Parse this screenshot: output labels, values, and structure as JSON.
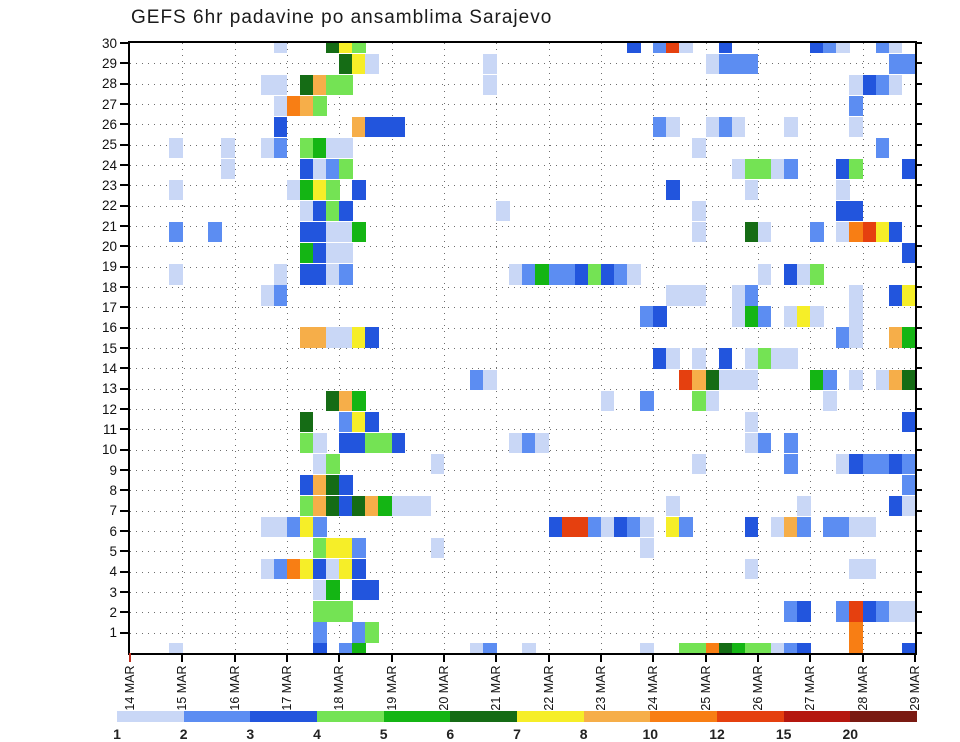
{
  "title": "GEFS 6hr padavine po ansamblima Sarajevo",
  "chart_data": {
    "type": "heatmap",
    "title": "GEFS 6hr padavine po ansamblima Sarajevo",
    "x_axis": {
      "labels": [
        "14 MAR",
        "15 MAR",
        "16 MAR",
        "17 MAR",
        "18 MAR",
        "19 MAR",
        "20 MAR",
        "21 MAR",
        "22 MAR",
        "23 MAR",
        "24 MAR",
        "25 MAR",
        "26 MAR",
        "27 MAR",
        "28 MAR",
        "29 MAR"
      ],
      "columns_per_day": 4,
      "total_columns": 60,
      "grid": "dotted"
    },
    "y_axis": {
      "labels": [
        "30",
        "29",
        "28",
        "27",
        "26",
        "25",
        "24",
        "23",
        "22",
        "21",
        "20",
        "19",
        "18",
        "17",
        "16",
        "15",
        "14",
        "13",
        "12",
        "11",
        "10",
        "9",
        "8",
        "7",
        "6",
        "5",
        "4",
        "3",
        "2",
        "1"
      ],
      "rows": 30,
      "grid": "dotted"
    },
    "legend": {
      "position": "bottom",
      "values": [
        "1",
        "2",
        "3",
        "4",
        "5",
        "6",
        "7",
        "8",
        "10",
        "12",
        "15",
        "20"
      ],
      "colors": [
        "#c9d7f6",
        "#5c8df2",
        "#2255dd",
        "#74e354",
        "#14b514",
        "#156c15",
        "#f6ee28",
        "#f6ae49",
        "#f87e14",
        "#e5400f",
        "#b5170f",
        "#7a1a12"
      ]
    },
    "palette": {
      "1": "#c9d7f6",
      "2": "#5c8df2",
      "3": "#2255dd",
      "4": "#74e354",
      "5": "#14b514",
      "6": "#156c15",
      "7": "#f6ee28",
      "8": "#f6ae49",
      "10": "#f87e14",
      "12": "#e5400f",
      "15": "#b5170f",
      "20": "#7a1a12"
    },
    "cells": [
      [
        30,
        11,
        1
      ],
      [
        30,
        15,
        6
      ],
      [
        30,
        16,
        7
      ],
      [
        30,
        17,
        4
      ],
      [
        30,
        38,
        3
      ],
      [
        30,
        40,
        2
      ],
      [
        30,
        41,
        12
      ],
      [
        30,
        42,
        1
      ],
      [
        30,
        45,
        3
      ],
      [
        30,
        52,
        3
      ],
      [
        30,
        53,
        2
      ],
      [
        30,
        54,
        1
      ],
      [
        30,
        57,
        2
      ],
      [
        30,
        58,
        1
      ],
      [
        29,
        16,
        6
      ],
      [
        29,
        17,
        7
      ],
      [
        29,
        18,
        1
      ],
      [
        29,
        27,
        1
      ],
      [
        29,
        44,
        1
      ],
      [
        29,
        45,
        2
      ],
      [
        29,
        46,
        2
      ],
      [
        29,
        47,
        2
      ],
      [
        29,
        58,
        2
      ],
      [
        29,
        59,
        2
      ],
      [
        28,
        10,
        1
      ],
      [
        28,
        11,
        1
      ],
      [
        28,
        13,
        6
      ],
      [
        28,
        14,
        8
      ],
      [
        28,
        15,
        4
      ],
      [
        28,
        16,
        4
      ],
      [
        28,
        27,
        1
      ],
      [
        28,
        55,
        1
      ],
      [
        28,
        56,
        3
      ],
      [
        28,
        57,
        2
      ],
      [
        28,
        58,
        1
      ],
      [
        27,
        11,
        1
      ],
      [
        27,
        12,
        10
      ],
      [
        27,
        13,
        8
      ],
      [
        27,
        14,
        4
      ],
      [
        27,
        55,
        2
      ],
      [
        26,
        11,
        3
      ],
      [
        26,
        17,
        8
      ],
      [
        26,
        18,
        3
      ],
      [
        26,
        19,
        3
      ],
      [
        26,
        20,
        3
      ],
      [
        26,
        40,
        2
      ],
      [
        26,
        41,
        1
      ],
      [
        26,
        44,
        1
      ],
      [
        26,
        45,
        2
      ],
      [
        26,
        46,
        1
      ],
      [
        26,
        50,
        1
      ],
      [
        26,
        55,
        1
      ],
      [
        25,
        3,
        1
      ],
      [
        25,
        7,
        1
      ],
      [
        25,
        10,
        1
      ],
      [
        25,
        11,
        2
      ],
      [
        25,
        13,
        4
      ],
      [
        25,
        14,
        5
      ],
      [
        25,
        15,
        1
      ],
      [
        25,
        16,
        1
      ],
      [
        25,
        43,
        1
      ],
      [
        25,
        57,
        2
      ],
      [
        24,
        7,
        1
      ],
      [
        24,
        13,
        3
      ],
      [
        24,
        14,
        1
      ],
      [
        24,
        15,
        2
      ],
      [
        24,
        16,
        4
      ],
      [
        24,
        46,
        1
      ],
      [
        24,
        47,
        4
      ],
      [
        24,
        48,
        4
      ],
      [
        24,
        49,
        1
      ],
      [
        24,
        50,
        2
      ],
      [
        24,
        54,
        3
      ],
      [
        24,
        55,
        4
      ],
      [
        24,
        59,
        3
      ],
      [
        23,
        3,
        1
      ],
      [
        23,
        12,
        1
      ],
      [
        23,
        13,
        5
      ],
      [
        23,
        14,
        7
      ],
      [
        23,
        15,
        4
      ],
      [
        23,
        17,
        3
      ],
      [
        23,
        41,
        3
      ],
      [
        23,
        47,
        1
      ],
      [
        23,
        54,
        1
      ],
      [
        22,
        13,
        1
      ],
      [
        22,
        14,
        3
      ],
      [
        22,
        15,
        4
      ],
      [
        22,
        16,
        3
      ],
      [
        22,
        28,
        1
      ],
      [
        22,
        43,
        1
      ],
      [
        22,
        54,
        3
      ],
      [
        22,
        55,
        3
      ],
      [
        21,
        3,
        2
      ],
      [
        21,
        6,
        2
      ],
      [
        21,
        13,
        3
      ],
      [
        21,
        14,
        3
      ],
      [
        21,
        15,
        1
      ],
      [
        21,
        16,
        1
      ],
      [
        21,
        17,
        5
      ],
      [
        21,
        43,
        1
      ],
      [
        21,
        47,
        6
      ],
      [
        21,
        48,
        1
      ],
      [
        21,
        52,
        2
      ],
      [
        21,
        54,
        1
      ],
      [
        21,
        55,
        10
      ],
      [
        21,
        56,
        12
      ],
      [
        21,
        57,
        7
      ],
      [
        21,
        58,
        3
      ],
      [
        20,
        13,
        5
      ],
      [
        20,
        14,
        3
      ],
      [
        20,
        15,
        1
      ],
      [
        20,
        16,
        1
      ],
      [
        20,
        59,
        3
      ],
      [
        19,
        3,
        1
      ],
      [
        19,
        11,
        1
      ],
      [
        19,
        13,
        3
      ],
      [
        19,
        14,
        3
      ],
      [
        19,
        15,
        1
      ],
      [
        19,
        16,
        2
      ],
      [
        19,
        29,
        1
      ],
      [
        19,
        30,
        2
      ],
      [
        19,
        31,
        5
      ],
      [
        19,
        32,
        2
      ],
      [
        19,
        33,
        2
      ],
      [
        19,
        34,
        3
      ],
      [
        19,
        35,
        4
      ],
      [
        19,
        36,
        3
      ],
      [
        19,
        37,
        2
      ],
      [
        19,
        38,
        1
      ],
      [
        19,
        48,
        1
      ],
      [
        19,
        50,
        3
      ],
      [
        19,
        51,
        1
      ],
      [
        19,
        52,
        4
      ],
      [
        18,
        10,
        1
      ],
      [
        18,
        11,
        2
      ],
      [
        18,
        41,
        1
      ],
      [
        18,
        42,
        1
      ],
      [
        18,
        43,
        1
      ],
      [
        18,
        46,
        1
      ],
      [
        18,
        47,
        2
      ],
      [
        18,
        55,
        1
      ],
      [
        18,
        58,
        3
      ],
      [
        18,
        59,
        7
      ],
      [
        17,
        39,
        2
      ],
      [
        17,
        40,
        3
      ],
      [
        17,
        46,
        1
      ],
      [
        17,
        47,
        5
      ],
      [
        17,
        48,
        2
      ],
      [
        17,
        50,
        1
      ],
      [
        17,
        51,
        7
      ],
      [
        17,
        52,
        1
      ],
      [
        17,
        55,
        1
      ],
      [
        16,
        13,
        8
      ],
      [
        16,
        14,
        8
      ],
      [
        16,
        15,
        1
      ],
      [
        16,
        16,
        1
      ],
      [
        16,
        17,
        7
      ],
      [
        16,
        18,
        3
      ],
      [
        16,
        54,
        2
      ],
      [
        16,
        55,
        1
      ],
      [
        16,
        58,
        8
      ],
      [
        16,
        59,
        5
      ],
      [
        15,
        40,
        3
      ],
      [
        15,
        41,
        1
      ],
      [
        15,
        43,
        1
      ],
      [
        15,
        45,
        3
      ],
      [
        15,
        47,
        1
      ],
      [
        15,
        48,
        4
      ],
      [
        15,
        49,
        1
      ],
      [
        15,
        50,
        1
      ],
      [
        14,
        26,
        2
      ],
      [
        14,
        27,
        1
      ],
      [
        14,
        42,
        12
      ],
      [
        14,
        43,
        8
      ],
      [
        14,
        44,
        6
      ],
      [
        14,
        45,
        1
      ],
      [
        14,
        46,
        1
      ],
      [
        14,
        47,
        1
      ],
      [
        14,
        52,
        5
      ],
      [
        14,
        53,
        2
      ],
      [
        14,
        55,
        1
      ],
      [
        14,
        57,
        1
      ],
      [
        14,
        58,
        8
      ],
      [
        14,
        59,
        6
      ],
      [
        13,
        15,
        6
      ],
      [
        13,
        16,
        8
      ],
      [
        13,
        17,
        5
      ],
      [
        13,
        36,
        1
      ],
      [
        13,
        39,
        2
      ],
      [
        13,
        43,
        4
      ],
      [
        13,
        44,
        1
      ],
      [
        13,
        53,
        1
      ],
      [
        12,
        13,
        6
      ],
      [
        12,
        16,
        2
      ],
      [
        12,
        17,
        7
      ],
      [
        12,
        18,
        3
      ],
      [
        12,
        47,
        1
      ],
      [
        12,
        59,
        3
      ],
      [
        11,
        13,
        4
      ],
      [
        11,
        14,
        1
      ],
      [
        11,
        16,
        3
      ],
      [
        11,
        17,
        3
      ],
      [
        11,
        18,
        4
      ],
      [
        11,
        19,
        4
      ],
      [
        11,
        20,
        3
      ],
      [
        11,
        29,
        1
      ],
      [
        11,
        30,
        2
      ],
      [
        11,
        31,
        1
      ],
      [
        11,
        47,
        1
      ],
      [
        11,
        48,
        2
      ],
      [
        11,
        50,
        2
      ],
      [
        10,
        14,
        1
      ],
      [
        10,
        15,
        4
      ],
      [
        10,
        23,
        1
      ],
      [
        10,
        43,
        1
      ],
      [
        10,
        50,
        2
      ],
      [
        10,
        54,
        1
      ],
      [
        10,
        55,
        3
      ],
      [
        10,
        56,
        2
      ],
      [
        10,
        57,
        2
      ],
      [
        10,
        58,
        3
      ],
      [
        10,
        59,
        2
      ],
      [
        9,
        13,
        3
      ],
      [
        9,
        14,
        8
      ],
      [
        9,
        15,
        6
      ],
      [
        9,
        16,
        3
      ],
      [
        9,
        59,
        2
      ],
      [
        8,
        13,
        4
      ],
      [
        8,
        14,
        8
      ],
      [
        8,
        15,
        6
      ],
      [
        8,
        16,
        3
      ],
      [
        8,
        17,
        6
      ],
      [
        8,
        18,
        8
      ],
      [
        8,
        19,
        5
      ],
      [
        8,
        20,
        1
      ],
      [
        8,
        21,
        1
      ],
      [
        8,
        22,
        1
      ],
      [
        8,
        41,
        1
      ],
      [
        8,
        51,
        1
      ],
      [
        8,
        58,
        3
      ],
      [
        8,
        59,
        1
      ],
      [
        7,
        10,
        1
      ],
      [
        7,
        11,
        1
      ],
      [
        7,
        12,
        2
      ],
      [
        7,
        13,
        7
      ],
      [
        7,
        14,
        2
      ],
      [
        7,
        32,
        3
      ],
      [
        7,
        33,
        12
      ],
      [
        7,
        34,
        12
      ],
      [
        7,
        35,
        2
      ],
      [
        7,
        36,
        1
      ],
      [
        7,
        37,
        3
      ],
      [
        7,
        38,
        2
      ],
      [
        7,
        39,
        1
      ],
      [
        7,
        41,
        7
      ],
      [
        7,
        42,
        2
      ],
      [
        7,
        47,
        3
      ],
      [
        7,
        49,
        1
      ],
      [
        7,
        50,
        8
      ],
      [
        7,
        51,
        2
      ],
      [
        7,
        53,
        2
      ],
      [
        7,
        54,
        2
      ],
      [
        7,
        55,
        1
      ],
      [
        7,
        56,
        1
      ],
      [
        6,
        14,
        4
      ],
      [
        6,
        15,
        7
      ],
      [
        6,
        16,
        7
      ],
      [
        6,
        17,
        2
      ],
      [
        6,
        23,
        1
      ],
      [
        6,
        39,
        1
      ],
      [
        5,
        10,
        1
      ],
      [
        5,
        11,
        2
      ],
      [
        5,
        12,
        10
      ],
      [
        5,
        13,
        7
      ],
      [
        5,
        14,
        3
      ],
      [
        5,
        15,
        1
      ],
      [
        5,
        16,
        7
      ],
      [
        5,
        17,
        3
      ],
      [
        5,
        47,
        1
      ],
      [
        5,
        55,
        1
      ],
      [
        5,
        56,
        1
      ],
      [
        4,
        14,
        1
      ],
      [
        4,
        15,
        5
      ],
      [
        4,
        17,
        3
      ],
      [
        4,
        18,
        3
      ],
      [
        3,
        14,
        4
      ],
      [
        3,
        15,
        4
      ],
      [
        3,
        16,
        4
      ],
      [
        3,
        50,
        2
      ],
      [
        3,
        51,
        3
      ],
      [
        3,
        54,
        2
      ],
      [
        3,
        55,
        12
      ],
      [
        3,
        56,
        3
      ],
      [
        3,
        57,
        2
      ],
      [
        3,
        58,
        1
      ],
      [
        3,
        59,
        1
      ],
      [
        2,
        14,
        2
      ],
      [
        2,
        17,
        2
      ],
      [
        2,
        18,
        4
      ],
      [
        2,
        55,
        10
      ],
      [
        1,
        3,
        1
      ],
      [
        1,
        14,
        3
      ],
      [
        1,
        16,
        2
      ],
      [
        1,
        17,
        5
      ],
      [
        1,
        26,
        1
      ],
      [
        1,
        27,
        2
      ],
      [
        1,
        30,
        1
      ],
      [
        1,
        39,
        1
      ],
      [
        1,
        42,
        4
      ],
      [
        1,
        43,
        4
      ],
      [
        1,
        44,
        10
      ],
      [
        1,
        45,
        6
      ],
      [
        1,
        46,
        5
      ],
      [
        1,
        47,
        4
      ],
      [
        1,
        48,
        4
      ],
      [
        1,
        49,
        1
      ],
      [
        1,
        50,
        2
      ],
      [
        1,
        51,
        3
      ],
      [
        1,
        55,
        10
      ],
      [
        1,
        59,
        3
      ]
    ]
  }
}
